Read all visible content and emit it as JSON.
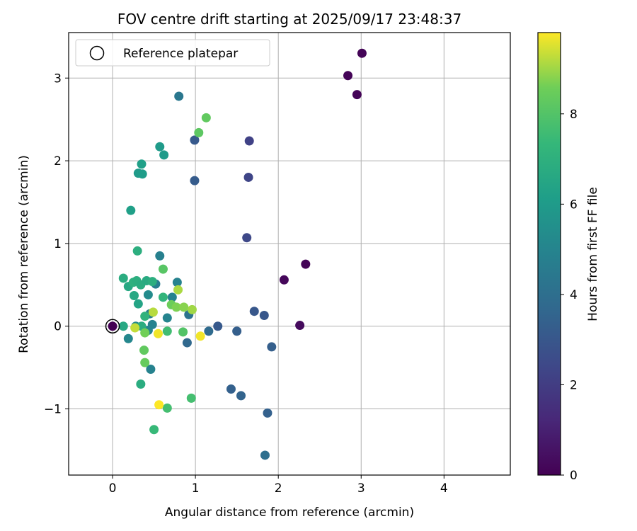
{
  "chart_data": {
    "type": "scatter",
    "title": "FOV centre drift starting at 2025/09/17 23:48:37",
    "xlabel": "Angular distance from reference (arcmin)",
    "ylabel": "Rotation from reference (arcmin)",
    "xlim": [
      -0.53,
      4.8
    ],
    "ylim": [
      -1.8,
      3.55
    ],
    "xticks": [
      0,
      1,
      2,
      3,
      4
    ],
    "yticks": [
      -1,
      0,
      1,
      2,
      3
    ],
    "ytick_labels": [
      "−1",
      "0",
      "1",
      "2",
      "3"
    ],
    "grid": true,
    "legend": {
      "placement": "top-left",
      "label": "Reference platepar"
    },
    "reference_point": {
      "x": 0,
      "y": 0
    },
    "colorbar": {
      "label": "Hours from first FF file",
      "min": 0,
      "max": 9.8,
      "ticks": [
        0,
        2,
        4,
        6,
        8
      ],
      "colormap": "viridis"
    },
    "points": [
      {
        "x": 2.95,
        "y": 2.8,
        "c": 0.1
      },
      {
        "x": 3.01,
        "y": 3.3,
        "c": 0.1
      },
      {
        "x": 2.84,
        "y": 3.03,
        "c": 0.1
      },
      {
        "x": 2.33,
        "y": 0.75,
        "c": 0.1
      },
      {
        "x": 2.07,
        "y": 0.56,
        "c": 0.2
      },
      {
        "x": 2.26,
        "y": 0.01,
        "c": 0.3
      },
      {
        "x": 1.65,
        "y": 2.24,
        "c": 2.2
      },
      {
        "x": 1.64,
        "y": 1.8,
        "c": 2.3
      },
      {
        "x": 1.62,
        "y": 1.07,
        "c": 2.4
      },
      {
        "x": 0.99,
        "y": 2.25,
        "c": 3.1
      },
      {
        "x": 0.99,
        "y": 1.76,
        "c": 3.2
      },
      {
        "x": 1.71,
        "y": 0.18,
        "c": 3.0
      },
      {
        "x": 1.83,
        "y": 0.13,
        "c": 3.0
      },
      {
        "x": 1.92,
        "y": -0.25,
        "c": 3.3
      },
      {
        "x": 1.27,
        "y": 0.0,
        "c": 3.1
      },
      {
        "x": 1.5,
        "y": -0.06,
        "c": 3.3
      },
      {
        "x": 1.16,
        "y": -0.06,
        "c": 3.8
      },
      {
        "x": 0.9,
        "y": -0.2,
        "c": 3.7
      },
      {
        "x": 0.92,
        "y": 0.14,
        "c": 4.2
      },
      {
        "x": 1.43,
        "y": -0.76,
        "c": 3.4
      },
      {
        "x": 1.55,
        "y": -0.84,
        "c": 3.5
      },
      {
        "x": 1.87,
        "y": -1.05,
        "c": 3.4
      },
      {
        "x": 1.84,
        "y": -1.56,
        "c": 4.0
      },
      {
        "x": 0.8,
        "y": 2.78,
        "c": 4.4
      },
      {
        "x": 0.57,
        "y": 0.85,
        "c": 4.8
      },
      {
        "x": 0.78,
        "y": 0.53,
        "c": 4.9
      },
      {
        "x": 0.72,
        "y": 0.35,
        "c": 4.9
      },
      {
        "x": 0.66,
        "y": 0.1,
        "c": 5.0
      },
      {
        "x": 0.52,
        "y": 0.51,
        "c": 4.7
      },
      {
        "x": 0.45,
        "y": 0.15,
        "c": 4.7
      },
      {
        "x": 0.48,
        "y": 0.02,
        "c": 4.9
      },
      {
        "x": 0.43,
        "y": -0.05,
        "c": 5.0
      },
      {
        "x": 0.46,
        "y": -0.52,
        "c": 4.9
      },
      {
        "x": 0.28,
        "y": 0.0,
        "c": 5.2
      },
      {
        "x": 0.19,
        "y": -0.15,
        "c": 5.1
      },
      {
        "x": 0.43,
        "y": 0.38,
        "c": 5.3
      },
      {
        "x": 0.57,
        "y": 2.17,
        "c": 6.0
      },
      {
        "x": 0.62,
        "y": 2.07,
        "c": 6.0
      },
      {
        "x": 0.35,
        "y": 1.96,
        "c": 6.2
      },
      {
        "x": 0.31,
        "y": 1.85,
        "c": 6.0
      },
      {
        "x": 0.36,
        "y": 1.84,
        "c": 6.1
      },
      {
        "x": 0.22,
        "y": 1.4,
        "c": 6.2
      },
      {
        "x": 0.3,
        "y": 0.91,
        "c": 6.9
      },
      {
        "x": 0.13,
        "y": 0.58,
        "c": 6.8
      },
      {
        "x": 0.19,
        "y": 0.48,
        "c": 6.6
      },
      {
        "x": 0.25,
        "y": 0.53,
        "c": 7.0
      },
      {
        "x": 0.29,
        "y": 0.55,
        "c": 6.9
      },
      {
        "x": 0.34,
        "y": 0.5,
        "c": 6.8
      },
      {
        "x": 0.41,
        "y": 0.55,
        "c": 6.7
      },
      {
        "x": 0.48,
        "y": 0.54,
        "c": 6.9
      },
      {
        "x": 0.26,
        "y": 0.37,
        "c": 6.6
      },
      {
        "x": 0.31,
        "y": 0.27,
        "c": 6.4
      },
      {
        "x": 0.13,
        "y": 0.0,
        "c": 6.6
      },
      {
        "x": 0.35,
        "y": 0.0,
        "c": 6.8
      },
      {
        "x": 0.39,
        "y": 0.12,
        "c": 7.1
      },
      {
        "x": 0.61,
        "y": 0.35,
        "c": 7.2
      },
      {
        "x": 0.66,
        "y": -0.06,
        "c": 7.6
      },
      {
        "x": 0.66,
        "y": -0.99,
        "c": 7.7
      },
      {
        "x": 0.5,
        "y": -1.25,
        "c": 7.4
      },
      {
        "x": 0.34,
        "y": -0.7,
        "c": 6.8
      },
      {
        "x": 0.95,
        "y": -0.87,
        "c": 7.7
      },
      {
        "x": 0.85,
        "y": -0.07,
        "c": 8.0
      },
      {
        "x": 0.61,
        "y": 0.69,
        "c": 8.1
      },
      {
        "x": 1.04,
        "y": 2.34,
        "c": 8.2
      },
      {
        "x": 1.13,
        "y": 2.52,
        "c": 8.3
      },
      {
        "x": 0.38,
        "y": -0.29,
        "c": 8.3
      },
      {
        "x": 0.39,
        "y": -0.44,
        "c": 8.4
      },
      {
        "x": 0.39,
        "y": -0.08,
        "c": 8.6
      },
      {
        "x": 0.71,
        "y": 0.26,
        "c": 8.5
      },
      {
        "x": 0.77,
        "y": 0.23,
        "c": 8.7
      },
      {
        "x": 0.86,
        "y": 0.23,
        "c": 8.8
      },
      {
        "x": 0.96,
        "y": 0.2,
        "c": 9.0
      },
      {
        "x": 0.79,
        "y": 0.44,
        "c": 9.1
      },
      {
        "x": 0.49,
        "y": 0.17,
        "c": 9.2
      },
      {
        "x": 0.27,
        "y": -0.02,
        "c": 9.3
      },
      {
        "x": 0.55,
        "y": -0.09,
        "c": 9.7
      },
      {
        "x": 1.06,
        "y": -0.12,
        "c": 9.7
      },
      {
        "x": 0.56,
        "y": -0.95,
        "c": 9.8
      }
    ]
  }
}
